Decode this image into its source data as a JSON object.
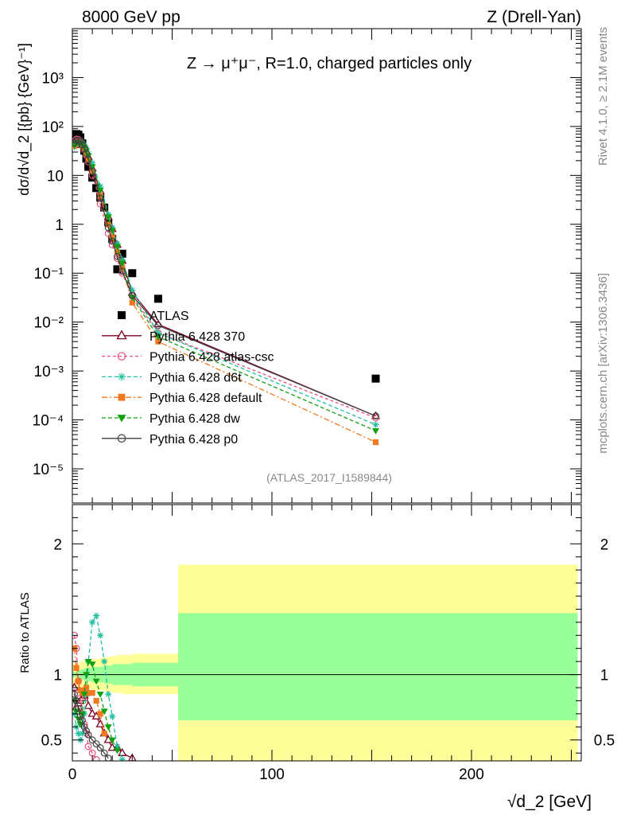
{
  "header": {
    "left": "8000 GeV pp",
    "right": "Z (Drell-Yan)"
  },
  "side_labels": {
    "rivet": "Rivet 4.1.0, ≥ 2.1M events",
    "mcplots": "mcplots.cern.ch [arXiv:1306.3436]"
  },
  "chart_data": [
    {
      "type": "scatter",
      "title": "Z → μ⁺μ⁻, R=1.0, charged particles only",
      "watermark": "(ATLAS_2017_I1589844)",
      "ylabel": "dσ/d√d_2 [{pb} {GeV}⁻¹]",
      "yscale": "log",
      "xlim": [
        0,
        255
      ],
      "ylim": [
        2e-06,
        10000
      ],
      "ytick_labels": [
        "10⁻⁵",
        "10⁻⁴",
        "10⁻³",
        "10⁻²",
        "10⁻¹",
        "1",
        "10",
        "10²",
        "10³"
      ],
      "ytick_values": [
        1e-05,
        0.0001,
        0.001,
        0.01,
        0.1,
        1,
        10,
        100,
        1000
      ],
      "legend_position": "center-left",
      "series": [
        {
          "name": "ATLAS",
          "color": "#000000",
          "marker": "square",
          "x": [
            1,
            2,
            3,
            4,
            5,
            6,
            7,
            8,
            10,
            12,
            14,
            16,
            18,
            20,
            22.5,
            25,
            30,
            43,
            152
          ],
          "y": [
            58,
            70,
            68,
            60,
            45,
            32,
            22,
            15,
            9,
            5.5,
            3.5,
            2.2,
            1.1,
            0.5,
            0.12,
            0.25,
            0.1,
            0.03,
            0.0007
          ]
        },
        {
          "name": "Pythia 6.428 370",
          "color": "#800020",
          "marker": "triangle-open",
          "x": [
            1,
            2,
            3,
            4,
            5,
            6,
            7,
            8,
            10,
            12,
            14,
            16,
            18,
            20,
            22.5,
            25,
            30,
            43,
            152
          ],
          "y": [
            42,
            48,
            50,
            48,
            42,
            36,
            30,
            24,
            14,
            8.5,
            4.8,
            2.6,
            1.4,
            0.8,
            0.38,
            0.18,
            0.04,
            0.009,
            0.00012
          ]
        },
        {
          "name": "Pythia 6.428 atlas-csc",
          "color": "#e8507a",
          "marker": "circle-open",
          "x": [
            1,
            2,
            3,
            4,
            5,
            6,
            7,
            8,
            10,
            12,
            14,
            16,
            18,
            20,
            22.5,
            25,
            30,
            43,
            152
          ],
          "y": [
            50,
            55,
            54,
            50,
            42,
            34,
            26,
            19,
            10,
            5.5,
            2.6,
            1.3,
            0.65,
            0.38,
            0.2,
            0.1,
            0.034,
            0.006,
            0.00011
          ]
        },
        {
          "name": "Pythia 6.428 d6t",
          "color": "#20c0a0",
          "marker": "asterisk",
          "x": [
            1,
            2,
            3,
            4,
            5,
            6,
            7,
            8,
            10,
            12,
            14,
            16,
            18,
            20,
            22.5,
            25,
            30,
            43,
            152
          ],
          "y": [
            38,
            42,
            46,
            48,
            46,
            42,
            36,
            28,
            18,
            11,
            6,
            3.2,
            1.6,
            0.85,
            0.4,
            0.19,
            0.045,
            0.006,
            8e-05
          ]
        },
        {
          "name": "Pythia 6.428 default",
          "color": "#f07820",
          "marker": "square-filled",
          "x": [
            1,
            2,
            3,
            4,
            5,
            6,
            7,
            8,
            10,
            12,
            14,
            16,
            18,
            20,
            22.5,
            25,
            30,
            43,
            152
          ],
          "y": [
            40,
            46,
            48,
            46,
            40,
            34,
            27,
            21,
            12,
            7,
            3.8,
            2.0,
            1.0,
            0.55,
            0.27,
            0.13,
            0.025,
            0.004,
            3.5e-05
          ]
        },
        {
          "name": "Pythia 6.428 dw",
          "color": "#10a010",
          "marker": "triangle-down-filled",
          "x": [
            1,
            2,
            3,
            4,
            5,
            6,
            7,
            8,
            10,
            12,
            14,
            16,
            18,
            20,
            22.5,
            25,
            30,
            43,
            152
          ],
          "y": [
            41,
            45,
            47,
            46,
            42,
            37,
            31,
            25,
            15,
            9,
            5,
            2.7,
            1.4,
            0.75,
            0.35,
            0.16,
            0.032,
            0.005,
            6e-05
          ]
        },
        {
          "name": "Pythia 6.428 p0",
          "color": "#404040",
          "marker": "circle-open",
          "x": [
            1,
            2,
            3,
            4,
            5,
            6,
            7,
            8,
            10,
            12,
            14,
            16,
            18,
            20,
            22.5,
            25,
            30,
            43,
            152
          ],
          "y": [
            46,
            52,
            52,
            49,
            42,
            35,
            28,
            21,
            12,
            6.5,
            3.4,
            1.7,
            0.85,
            0.45,
            0.22,
            0.11,
            0.035,
            0.0085,
            0.00012
          ]
        }
      ]
    },
    {
      "type": "line",
      "ylabel": "Ratio to ATLAS",
      "xlabel": "√d_2 [GeV]",
      "xlim": [
        0,
        255
      ],
      "ylim": [
        0.34,
        2.3
      ],
      "xtick_labels": [
        "0",
        "100",
        "200"
      ],
      "xtick_values": [
        0,
        100,
        200
      ],
      "ytick_labels": [
        "0.5",
        "1",
        "2"
      ],
      "ytick_values": [
        0.5,
        1,
        2
      ],
      "bands": {
        "bin_edges": [
          0,
          2,
          4,
          6,
          8,
          10,
          12,
          14,
          16,
          18,
          20,
          22.5,
          25,
          30,
          35,
          40,
          45,
          53,
          253
        ],
        "stat_lo": [
          0.98,
          0.97,
          0.96,
          0.95,
          0.95,
          0.94,
          0.94,
          0.94,
          0.93,
          0.93,
          0.92,
          0.92,
          0.92,
          0.91,
          0.91,
          0.91,
          0.91,
          0.65
        ],
        "stat_hi": [
          1.02,
          1.03,
          1.04,
          1.05,
          1.05,
          1.06,
          1.06,
          1.06,
          1.07,
          1.07,
          1.08,
          1.08,
          1.08,
          1.09,
          1.09,
          1.09,
          1.09,
          1.47
        ],
        "tot_lo": [
          0.91,
          0.9,
          0.9,
          0.89,
          0.89,
          0.88,
          0.88,
          0.88,
          0.87,
          0.87,
          0.86,
          0.86,
          0.85,
          0.85,
          0.85,
          0.85,
          0.85,
          0.25
        ],
        "tot_hi": [
          1.08,
          1.09,
          1.1,
          1.11,
          1.11,
          1.12,
          1.12,
          1.13,
          1.13,
          1.14,
          1.14,
          1.15,
          1.15,
          1.16,
          1.16,
          1.16,
          1.16,
          1.84
        ],
        "stat_color": "#99ff99",
        "total_color": "#ffff99"
      },
      "series": [
        {
          "name": "Pythia 6.428 370",
          "color": "#800020",
          "marker": "triangle-open",
          "x": [
            1,
            2,
            3,
            4,
            5,
            6,
            7,
            8,
            10,
            12,
            14,
            16,
            18,
            20,
            22.5,
            25,
            30
          ],
          "y": [
            0.9,
            0.75,
            0.78,
            0.8,
            0.82,
            0.84,
            0.86,
            0.76,
            0.7,
            0.68,
            0.62,
            0.55,
            0.5,
            0.44,
            0.44,
            0.4,
            0.36
          ]
        },
        {
          "name": "Pythia 6.428 atlas-csc",
          "color": "#e8507a",
          "marker": "circle-open",
          "x": [
            1,
            2,
            3,
            4,
            5,
            6,
            7,
            8,
            10,
            12
          ],
          "y": [
            1.3,
            1.2,
            0.95,
            0.82,
            0.7,
            0.62,
            0.55,
            0.45,
            0.4,
            0.35
          ]
        },
        {
          "name": "Pythia 6.428 d6t",
          "color": "#20c0a0",
          "marker": "asterisk",
          "x": [
            1,
            2,
            3,
            4,
            5,
            6,
            7,
            8,
            10,
            12,
            14,
            16,
            18,
            20,
            22.5,
            25
          ],
          "y": [
            0.7,
            0.6,
            0.55,
            0.5,
            0.55,
            0.7,
            0.85,
            1.1,
            1.4,
            1.45,
            1.3,
            1.1,
            0.85,
            0.68,
            0.45,
            0.35
          ]
        },
        {
          "name": "Pythia 6.428 default",
          "color": "#f07820",
          "marker": "square-filled",
          "x": [
            1,
            2,
            3,
            4,
            5,
            6,
            7,
            8,
            10,
            12,
            14,
            16
          ],
          "y": [
            1.2,
            1.05,
            0.95,
            0.88,
            0.86,
            0.88,
            0.9,
            0.86,
            0.86,
            0.8,
            0.7,
            0.55
          ]
        },
        {
          "name": "Pythia 6.428 dw",
          "color": "#10a010",
          "marker": "triangle-down-filled",
          "x": [
            1,
            2,
            3,
            4,
            5,
            6,
            7,
            8,
            10,
            12,
            14,
            16,
            18,
            20,
            22.5
          ],
          "y": [
            0.8,
            0.72,
            0.66,
            0.62,
            0.7,
            0.85,
            1.0,
            1.1,
            1.08,
            0.95,
            0.85,
            0.72,
            0.6,
            0.5,
            0.42
          ]
        },
        {
          "name": "Pythia 6.428 p0",
          "color": "#404040",
          "marker": "circle-open",
          "x": [
            1,
            2,
            3,
            4,
            5,
            6,
            7,
            8,
            10,
            12,
            14,
            16,
            18
          ],
          "y": [
            0.85,
            0.8,
            0.74,
            0.68,
            0.65,
            0.6,
            0.57,
            0.54,
            0.5,
            0.47,
            0.44,
            0.4,
            0.36
          ]
        }
      ]
    }
  ]
}
